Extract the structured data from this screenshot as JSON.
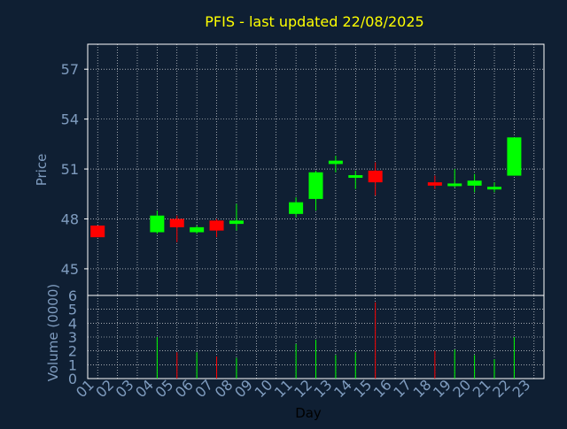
{
  "title": "PFIS - last updated 22/08/2025",
  "colors": {
    "background": "#0f1f33",
    "title": "#ffff00",
    "axis_text": "#7f9cbf",
    "xlabel_text": "#000000",
    "grid": "#ffffff",
    "up": "#00ff00",
    "down": "#ff0000"
  },
  "chart_data": [
    {
      "type": "candlestick",
      "title": "PFIS - last updated 22/08/2025",
      "ylabel": "Price",
      "ylim": [
        43.4,
        58.5
      ],
      "yticks": [
        45,
        48,
        51,
        54,
        57
      ],
      "grid": true,
      "candles": [
        {
          "day": 1,
          "open": 47.6,
          "high": 47.6,
          "low": 46.9,
          "close": 46.9
        },
        {
          "day": 4,
          "open": 47.2,
          "high": 48.5,
          "low": 47.1,
          "close": 48.2
        },
        {
          "day": 5,
          "open": 48.0,
          "high": 48.2,
          "low": 46.6,
          "close": 47.5
        },
        {
          "day": 6,
          "open": 47.2,
          "high": 47.6,
          "low": 47.1,
          "close": 47.5
        },
        {
          "day": 7,
          "open": 47.9,
          "high": 48.0,
          "low": 46.9,
          "close": 47.3
        },
        {
          "day": 8,
          "open": 47.7,
          "high": 48.9,
          "low": 47.3,
          "close": 47.9
        },
        {
          "day": 11,
          "open": 48.3,
          "high": 49.3,
          "low": 48.1,
          "close": 49.0
        },
        {
          "day": 12,
          "open": 49.2,
          "high": 50.9,
          "low": 48.5,
          "close": 50.8
        },
        {
          "day": 13,
          "open": 51.3,
          "high": 51.8,
          "low": 50.8,
          "close": 51.5
        },
        {
          "day": 14,
          "open": 50.5,
          "high": 50.9,
          "low": 49.8,
          "close": 50.6
        },
        {
          "day": 15,
          "open": 50.9,
          "high": 51.4,
          "low": 49.4,
          "close": 50.2
        },
        {
          "day": 18,
          "open": 50.2,
          "high": 50.6,
          "low": 49.8,
          "close": 50.0
        },
        {
          "day": 19,
          "open": 50.0,
          "high": 51.0,
          "low": 49.9,
          "close": 50.1
        },
        {
          "day": 20,
          "open": 50.0,
          "high": 50.7,
          "low": 49.6,
          "close": 50.3
        },
        {
          "day": 21,
          "open": 49.8,
          "high": 50.2,
          "low": 49.6,
          "close": 49.9
        },
        {
          "day": 22,
          "open": 50.6,
          "high": 52.9,
          "low": 50.6,
          "close": 52.9
        }
      ]
    },
    {
      "type": "bar",
      "ylabel": "Volume (0000)",
      "xlabel": "Day",
      "ylim": [
        0,
        6
      ],
      "yticks": [
        0,
        1,
        2,
        3,
        4,
        5,
        6
      ],
      "grid": true,
      "categories": [
        "01",
        "02",
        "03",
        "04",
        "05",
        "06",
        "07",
        "08",
        "09",
        "10",
        "11",
        "12",
        "13",
        "14",
        "15",
        "16",
        "17",
        "18",
        "19",
        "20",
        "21",
        "22",
        "23"
      ],
      "bars": [
        {
          "day": 1,
          "value": 0.0,
          "color": "down"
        },
        {
          "day": 4,
          "value": 3.0,
          "color": "up"
        },
        {
          "day": 5,
          "value": 1.9,
          "color": "down"
        },
        {
          "day": 6,
          "value": 1.9,
          "color": "up"
        },
        {
          "day": 7,
          "value": 1.6,
          "color": "down"
        },
        {
          "day": 8,
          "value": 1.5,
          "color": "up"
        },
        {
          "day": 11,
          "value": 2.5,
          "color": "up"
        },
        {
          "day": 12,
          "value": 2.8,
          "color": "up"
        },
        {
          "day": 13,
          "value": 1.7,
          "color": "up"
        },
        {
          "day": 14,
          "value": 1.9,
          "color": "up"
        },
        {
          "day": 15,
          "value": 5.5,
          "color": "down"
        },
        {
          "day": 18,
          "value": 2.0,
          "color": "down"
        },
        {
          "day": 19,
          "value": 2.1,
          "color": "up"
        },
        {
          "day": 20,
          "value": 1.7,
          "color": "up"
        },
        {
          "day": 21,
          "value": 1.4,
          "color": "up"
        },
        {
          "day": 22,
          "value": 3.0,
          "color": "up"
        }
      ]
    }
  ]
}
